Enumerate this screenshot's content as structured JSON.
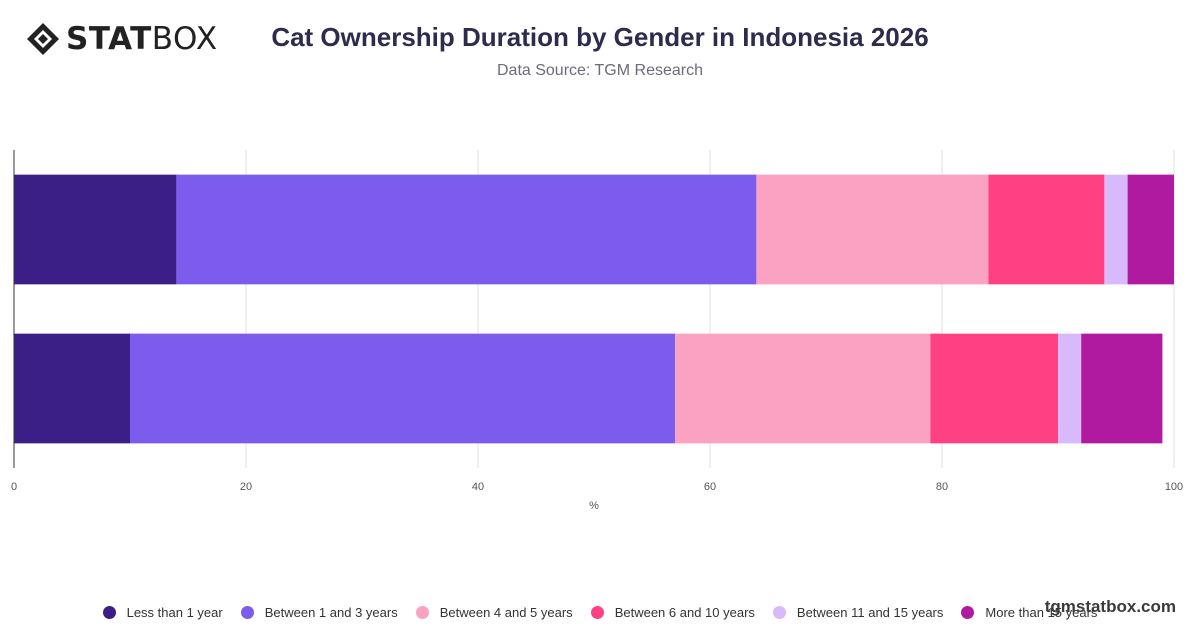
{
  "brand": {
    "logo_bold": "STAT",
    "logo_light": "BOX",
    "watermark": "tgmstatbox.com"
  },
  "colors": [
    "#3b1f86",
    "#7c5ced",
    "#fba2c3",
    "#ff4183",
    "#d8b9fb",
    "#b01aa0"
  ],
  "chart_data": {
    "type": "bar",
    "orientation": "horizontal",
    "stacked": true,
    "title": "Cat Ownership Duration by Gender in Indonesia 2026",
    "subtitle": "Data Source: TGM Research",
    "xlabel": "%",
    "ylabel": "",
    "xlim": [
      0,
      100
    ],
    "xticks": [
      0,
      20,
      40,
      60,
      80,
      100
    ],
    "grid": true,
    "legend_position": "bottom",
    "categories": [
      "",
      ""
    ],
    "series": [
      {
        "name": "Less than 1 year",
        "values": [
          14,
          10
        ]
      },
      {
        "name": "Between 1 and 3 years",
        "values": [
          50,
          47
        ]
      },
      {
        "name": "Between 4 and 5 years",
        "values": [
          20,
          22
        ]
      },
      {
        "name": "Between 6 and 10 years",
        "values": [
          10,
          11
        ]
      },
      {
        "name": "Between 11 and 15 years",
        "values": [
          2,
          2
        ]
      },
      {
        "name": "More than 15 years",
        "values": [
          4,
          7
        ]
      }
    ]
  }
}
